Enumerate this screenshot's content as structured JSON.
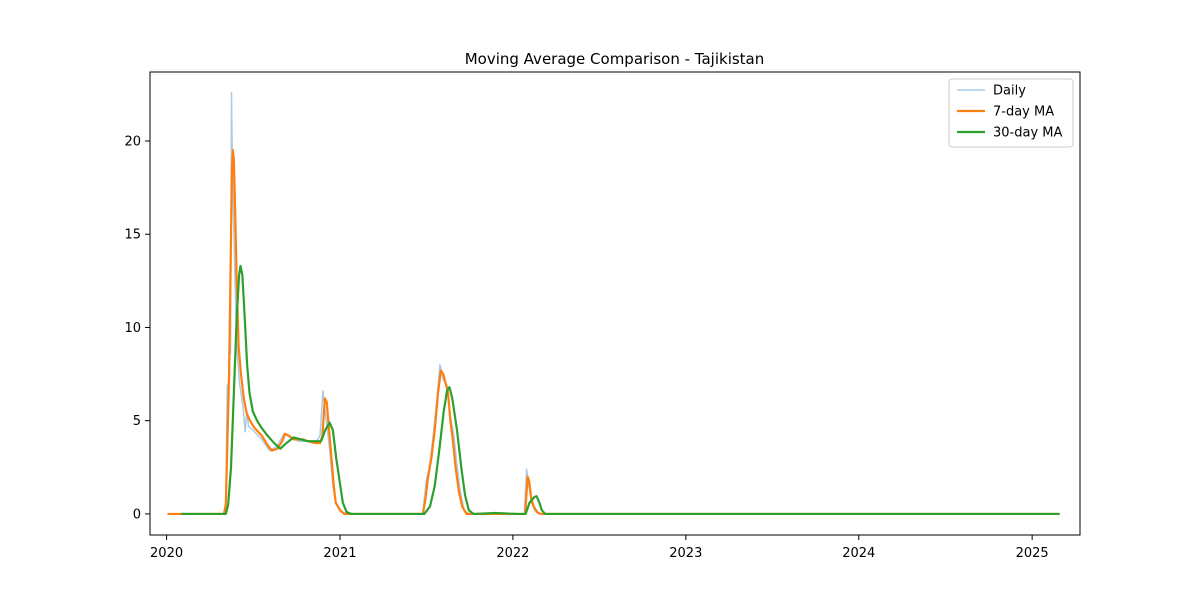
{
  "chart_data": {
    "type": "line",
    "title": "Moving Average Comparison - Tajikistan",
    "xlabel": "",
    "ylabel": "",
    "xlim": [
      "2019-11-27",
      "2025-04-12"
    ],
    "ylim": [
      -1.13,
      23.7
    ],
    "x_ticks": [
      "2020",
      "2021",
      "2022",
      "2023",
      "2024",
      "2025"
    ],
    "y_ticks": [
      0,
      5,
      10,
      15,
      20
    ],
    "grid": false,
    "legend": {
      "placement": "top-right",
      "entries": [
        "Daily",
        "7-day MA",
        "30-day MA"
      ]
    },
    "colors": {
      "daily": "#aecbe6",
      "ma7": "#ff7f0e",
      "ma30": "#2ca02c",
      "axis": "#000000"
    },
    "series": [
      {
        "name": "Daily",
        "points": [
          [
            "2020-01-03",
            0
          ],
          [
            "2020-05-01",
            0
          ],
          [
            "2020-05-05",
            0.2
          ],
          [
            "2020-05-08",
            6.9
          ],
          [
            "2020-05-10",
            5.5
          ],
          [
            "2020-05-13",
            10.6
          ],
          [
            "2020-05-15",
            8.6
          ],
          [
            "2020-05-17",
            22.6
          ],
          [
            "2020-05-19",
            18.5
          ],
          [
            "2020-05-23",
            14.0
          ],
          [
            "2020-05-28",
            9.0
          ],
          [
            "2020-06-03",
            7.0
          ],
          [
            "2020-06-10",
            5.8
          ],
          [
            "2020-06-15",
            4.4
          ],
          [
            "2020-06-18",
            5.5
          ],
          [
            "2020-06-22",
            4.7
          ],
          [
            "2020-07-01",
            4.5
          ],
          [
            "2020-07-20",
            4.0
          ],
          [
            "2020-08-05",
            3.4
          ],
          [
            "2020-08-20",
            3.6
          ],
          [
            "2020-09-05",
            4.3
          ],
          [
            "2020-09-20",
            4.1
          ],
          [
            "2020-10-05",
            3.9
          ],
          [
            "2020-10-25",
            3.9
          ],
          [
            "2020-11-10",
            3.8
          ],
          [
            "2020-11-20",
            4.2
          ],
          [
            "2020-11-26",
            6.6
          ],
          [
            "2020-12-03",
            5.0
          ],
          [
            "2020-12-10",
            3.5
          ],
          [
            "2020-12-17",
            1.5
          ],
          [
            "2020-12-24",
            0.6
          ],
          [
            "2021-01-05",
            0.1
          ],
          [
            "2021-01-20",
            0
          ],
          [
            "2021-06-25",
            0
          ],
          [
            "2021-07-02",
            1.8
          ],
          [
            "2021-07-08",
            2.4
          ],
          [
            "2021-07-16",
            4.0
          ],
          [
            "2021-07-24",
            6.0
          ],
          [
            "2021-07-31",
            8.0
          ],
          [
            "2021-08-07",
            7.2
          ],
          [
            "2021-08-15",
            6.9
          ],
          [
            "2021-08-22",
            5.2
          ],
          [
            "2021-08-29",
            4.3
          ],
          [
            "2021-09-05",
            2.6
          ],
          [
            "2021-09-12",
            1.2
          ],
          [
            "2021-09-20",
            0.2
          ],
          [
            "2021-10-01",
            0
          ],
          [
            "2022-01-25",
            0
          ],
          [
            "2022-01-30",
            2.4
          ],
          [
            "2022-02-04",
            1.5
          ],
          [
            "2022-02-09",
            0.6
          ],
          [
            "2022-02-16",
            0.2
          ],
          [
            "2022-02-24",
            0
          ],
          [
            "2025-02-28",
            0
          ]
        ]
      },
      {
        "name": "7-day MA",
        "points": [
          [
            "2020-01-03",
            0
          ],
          [
            "2020-05-01",
            0
          ],
          [
            "2020-05-05",
            0.5
          ],
          [
            "2020-05-08",
            3.5
          ],
          [
            "2020-05-12",
            7.5
          ],
          [
            "2020-05-15",
            13.0
          ],
          [
            "2020-05-18",
            18.5
          ],
          [
            "2020-05-20",
            19.5
          ],
          [
            "2020-05-22",
            19.0
          ],
          [
            "2020-05-25",
            16.0
          ],
          [
            "2020-05-28",
            12.5
          ],
          [
            "2020-06-01",
            9.0
          ],
          [
            "2020-06-06",
            7.5
          ],
          [
            "2020-06-12",
            6.2
          ],
          [
            "2020-06-18",
            5.4
          ],
          [
            "2020-06-25",
            5.0
          ],
          [
            "2020-07-05",
            4.6
          ],
          [
            "2020-07-20",
            4.2
          ],
          [
            "2020-08-01",
            3.7
          ],
          [
            "2020-08-10",
            3.4
          ],
          [
            "2020-08-22",
            3.5
          ],
          [
            "2020-09-01",
            3.9
          ],
          [
            "2020-09-07",
            4.3
          ],
          [
            "2020-09-15",
            4.2
          ],
          [
            "2020-09-25",
            4.0
          ],
          [
            "2020-10-05",
            4.0
          ],
          [
            "2020-10-15",
            4.0
          ],
          [
            "2020-10-25",
            3.9
          ],
          [
            "2020-11-10",
            3.8
          ],
          [
            "2020-11-20",
            3.8
          ],
          [
            "2020-11-25",
            4.2
          ],
          [
            "2020-11-30",
            6.2
          ],
          [
            "2020-12-04",
            6.0
          ],
          [
            "2020-12-09",
            4.5
          ],
          [
            "2020-12-14",
            3.0
          ],
          [
            "2020-12-19",
            1.5
          ],
          [
            "2020-12-23",
            0.6
          ],
          [
            "2021-01-01",
            0.2
          ],
          [
            "2021-01-10",
            0
          ],
          [
            "2021-06-25",
            0
          ],
          [
            "2021-07-01",
            0.9
          ],
          [
            "2021-07-06",
            2.0
          ],
          [
            "2021-07-13",
            3.0
          ],
          [
            "2021-07-20",
            4.5
          ],
          [
            "2021-07-27",
            6.5
          ],
          [
            "2021-08-02",
            7.7
          ],
          [
            "2021-08-07",
            7.5
          ],
          [
            "2021-08-12",
            7.0
          ],
          [
            "2021-08-17",
            6.5
          ],
          [
            "2021-08-22",
            5.0
          ],
          [
            "2021-08-27",
            4.0
          ],
          [
            "2021-09-02",
            2.5
          ],
          [
            "2021-09-09",
            1.2
          ],
          [
            "2021-09-16",
            0.4
          ],
          [
            "2021-09-25",
            0
          ],
          [
            "2022-01-27",
            0
          ],
          [
            "2022-02-01",
            2.0
          ],
          [
            "2022-02-04",
            1.8
          ],
          [
            "2022-02-09",
            0.8
          ],
          [
            "2022-02-14",
            0.4
          ],
          [
            "2022-02-21",
            0.1
          ],
          [
            "2022-03-01",
            0
          ],
          [
            "2025-02-28",
            0
          ]
        ]
      },
      {
        "name": "30-day MA",
        "points": [
          [
            "2020-02-01",
            0
          ],
          [
            "2020-05-05",
            0
          ],
          [
            "2020-05-10",
            0.5
          ],
          [
            "2020-05-16",
            2.5
          ],
          [
            "2020-05-22",
            6.5
          ],
          [
            "2020-05-28",
            10.5
          ],
          [
            "2020-06-02",
            12.8
          ],
          [
            "2020-06-05",
            13.3
          ],
          [
            "2020-06-09",
            12.8
          ],
          [
            "2020-06-14",
            10.5
          ],
          [
            "2020-06-19",
            8.0
          ],
          [
            "2020-06-24",
            6.5
          ],
          [
            "2020-07-01",
            5.5
          ],
          [
            "2020-07-10",
            5.0
          ],
          [
            "2020-07-20",
            4.6
          ],
          [
            "2020-08-01",
            4.2
          ],
          [
            "2020-08-15",
            3.8
          ],
          [
            "2020-08-28",
            3.5
          ],
          [
            "2020-09-10",
            3.8
          ],
          [
            "2020-09-25",
            4.1
          ],
          [
            "2020-10-10",
            4.0
          ],
          [
            "2020-10-25",
            3.9
          ],
          [
            "2020-11-10",
            3.9
          ],
          [
            "2020-11-22",
            3.9
          ],
          [
            "2020-12-01",
            4.5
          ],
          [
            "2020-12-10",
            4.9
          ],
          [
            "2020-12-17",
            4.5
          ],
          [
            "2020-12-24",
            3.0
          ],
          [
            "2020-12-31",
            1.8
          ],
          [
            "2021-01-07",
            0.6
          ],
          [
            "2021-01-15",
            0.1
          ],
          [
            "2021-01-25",
            0
          ],
          [
            "2021-06-28",
            0
          ],
          [
            "2021-07-10",
            0.4
          ],
          [
            "2021-07-20",
            1.5
          ],
          [
            "2021-07-30",
            3.5
          ],
          [
            "2021-08-08",
            5.5
          ],
          [
            "2021-08-15",
            6.6
          ],
          [
            "2021-08-20",
            6.8
          ],
          [
            "2021-08-26",
            6.2
          ],
          [
            "2021-09-05",
            4.5
          ],
          [
            "2021-09-14",
            2.5
          ],
          [
            "2021-09-22",
            1.0
          ],
          [
            "2021-09-30",
            0.2
          ],
          [
            "2021-10-10",
            0
          ],
          [
            "2021-11-25",
            0.05
          ],
          [
            "2022-01-10",
            0
          ],
          [
            "2022-01-28",
            0
          ],
          [
            "2022-02-05",
            0.6
          ],
          [
            "2022-02-15",
            0.9
          ],
          [
            "2022-02-20",
            0.95
          ],
          [
            "2022-02-26",
            0.6
          ],
          [
            "2022-03-03",
            0.2
          ],
          [
            "2022-03-10",
            0
          ],
          [
            "2025-02-28",
            0
          ]
        ]
      }
    ]
  }
}
